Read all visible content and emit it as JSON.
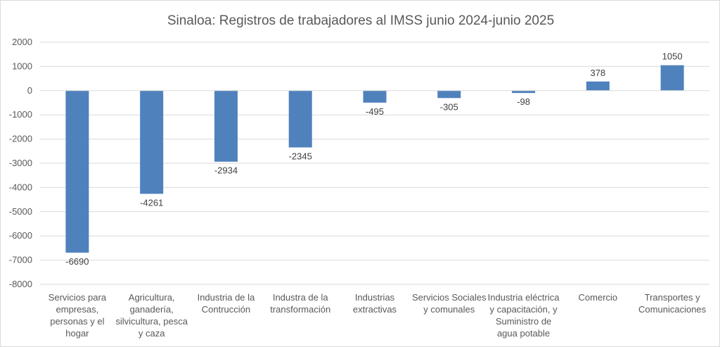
{
  "chart_data": {
    "type": "bar",
    "title": "Sinaloa: Registros de trabajadores al IMSS junio 2024-junio 2025",
    "xlabel": "",
    "ylabel": "",
    "ylim": [
      -8000,
      2000
    ],
    "ytick_step": 1000,
    "yticks": [
      "2000",
      "1000",
      "0",
      "-1000",
      "-2000",
      "-3000",
      "-4000",
      "-5000",
      "-6000",
      "-7000",
      "-8000"
    ],
    "grid": true,
    "legend": "none",
    "bar_color": "#4f81bd",
    "categories": [
      [
        "Servicios para",
        "empresas,",
        "personas y el",
        "hogar"
      ],
      [
        "Agricultura,",
        "ganadería,",
        "silvicultura, pesca",
        "y caza"
      ],
      [
        "Industria de la",
        "Contrucción"
      ],
      [
        "Industra de la",
        "transformación"
      ],
      [
        "Industrias",
        "extractivas"
      ],
      [
        "Servicios Sociales",
        "y comunales"
      ],
      [
        "Industria eléctrica",
        "y capacitación, y",
        "Suministro de",
        "agua potable"
      ],
      [
        "Comercio"
      ],
      [
        "Transportes y",
        "Comunicaciones"
      ]
    ],
    "values": [
      -6690,
      -4261,
      -2934,
      -2345,
      -495,
      -305,
      -98,
      378,
      1050
    ],
    "data_labels": [
      "-6690",
      "-4261",
      "-2934",
      "-2345",
      "-495",
      "-305",
      "-98",
      "378",
      "1050"
    ]
  }
}
